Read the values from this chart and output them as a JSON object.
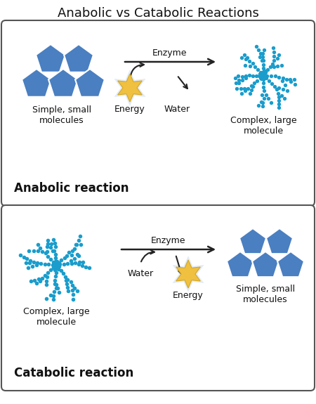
{
  "title": "Anabolic vs Catabolic Reactions",
  "title_fontsize": 13,
  "bg_color": "#ffffff",
  "pentagon_color": "#4a7fc1",
  "dot_color": "#1a9dcc",
  "arrow_color": "#222222",
  "star_face": "#f0c040",
  "star_edge": "#d4a820",
  "star_glow": "#c8d8f0",
  "enzyme_label": "Enzyme",
  "energy_label": "Energy",
  "water_label": "Water",
  "anabolic_label": "Anabolic reaction",
  "catabolic_label": "Catabolic reaction",
  "simple_small_label": "Simple, small\nmolecules",
  "complex_large_label": "Complex, large\nmolecule",
  "label_fontsize": 9,
  "reaction_label_fontsize": 12
}
